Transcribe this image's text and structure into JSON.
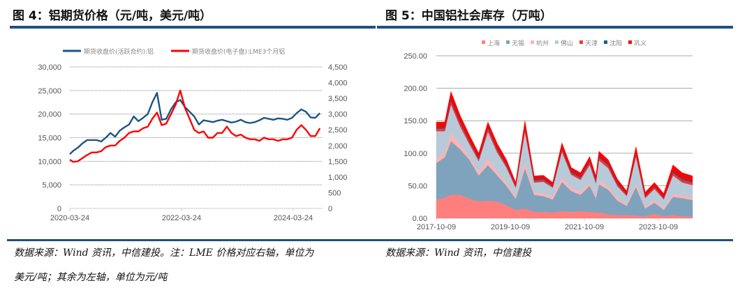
{
  "figures": [
    {
      "title": "图 4：铝期货价格（元/吨，美元/吨）",
      "note_lines": [
        "数据来源：Wind 资讯，中信建投。注：LME 价格对应右轴，单位为",
        "美元/吨；其余为左轴，单位为元/吨"
      ]
    },
    {
      "title": "图 5：中国铝社会库存（万吨）",
      "note_lines": [
        "数据来源：Wind 资讯，中信建投"
      ]
    }
  ],
  "chart_data": [
    {
      "type": "line",
      "title": "",
      "x_tick_labels": [
        "2020-03-24",
        "2022-03-24",
        "2024-03-24"
      ],
      "y_left_ticks": [
        "0",
        "5,000",
        "10,000",
        "15,000",
        "20,000",
        "25,000",
        "30,000"
      ],
      "y_right_ticks": [
        "0",
        "500",
        "1,000",
        "1,500",
        "2,000",
        "2,500",
        "3,000",
        "3,500",
        "4,000",
        "4,500"
      ],
      "ylim_left": [
        0,
        30000
      ],
      "ylim_right": [
        0,
        4500
      ],
      "grid": true,
      "legend_placement": "top",
      "x": [
        "2020-03",
        "2020-04",
        "2020-05",
        "2020-06",
        "2020-07",
        "2020-08",
        "2020-09",
        "2020-10",
        "2020-11",
        "2020-12",
        "2021-01",
        "2021-02",
        "2021-03",
        "2021-04",
        "2021-05",
        "2021-06",
        "2021-07",
        "2021-08",
        "2021-09",
        "2021-10",
        "2021-11",
        "2021-12",
        "2022-01",
        "2022-02",
        "2022-03",
        "2022-04",
        "2022-05",
        "2022-06",
        "2022-07",
        "2022-08",
        "2022-09",
        "2022-10",
        "2022-11",
        "2022-12",
        "2023-01",
        "2023-02",
        "2023-03",
        "2023-04",
        "2023-05",
        "2023-06",
        "2023-07",
        "2023-08",
        "2023-09",
        "2023-10",
        "2023-11",
        "2023-12",
        "2024-01",
        "2024-02",
        "2024-03",
        "2024-04",
        "2024-05",
        "2024-06",
        "2024-07",
        "2024-08",
        "2024-09"
      ],
      "series": [
        {
          "name": "期货收盘价(活跃合约):铝",
          "axis": "left",
          "color": "#1b5583",
          "values": [
            11500,
            12200,
            12900,
            13800,
            14500,
            14500,
            14500,
            14200,
            15000,
            16000,
            15200,
            16500,
            17200,
            17800,
            19500,
            18500,
            19200,
            20000,
            22500,
            24500,
            18800,
            19000,
            21000,
            22500,
            23000,
            21500,
            20500,
            19500,
            17800,
            18700,
            18500,
            18300,
            18600,
            18800,
            18500,
            18200,
            18400,
            18800,
            18300,
            18100,
            18300,
            18700,
            19200,
            19000,
            18800,
            19100,
            19000,
            18800,
            19200,
            20200,
            21000,
            20500,
            19300,
            19200,
            20200
          ]
        },
        {
          "name": "期货收盘价(电子盘):LME3个月铝",
          "axis": "right",
          "color": "#ff0000",
          "values": [
            1550,
            1480,
            1500,
            1600,
            1700,
            1780,
            1780,
            1820,
            1950,
            2000,
            2000,
            2150,
            2250,
            2400,
            2450,
            2450,
            2550,
            2600,
            2850,
            3050,
            2650,
            2700,
            3000,
            3300,
            3750,
            3200,
            2850,
            2500,
            2400,
            2450,
            2250,
            2250,
            2400,
            2400,
            2600,
            2400,
            2300,
            2350,
            2250,
            2200,
            2200,
            2150,
            2250,
            2200,
            2200,
            2150,
            2200,
            2200,
            2250,
            2500,
            2650,
            2500,
            2300,
            2300,
            2550
          ]
        }
      ]
    },
    {
      "type": "area",
      "stacked": true,
      "title": "",
      "x_tick_labels": [
        "2017-10-09",
        "2019-10-09",
        "2021-10-09",
        "2023-10-09"
      ],
      "y_ticks": [
        "0.00",
        "50.00",
        "100.00",
        "150.00",
        "200.00",
        "250.00"
      ],
      "ylim": [
        0,
        250
      ],
      "grid": true,
      "legend_placement": "top",
      "x": [
        "2017-10",
        "2018-01",
        "2018-03",
        "2018-06",
        "2018-09",
        "2018-12",
        "2019-03",
        "2019-06",
        "2019-09",
        "2019-12",
        "2020-03",
        "2020-06",
        "2020-09",
        "2020-12",
        "2021-03",
        "2021-06",
        "2021-09",
        "2021-12",
        "2022-02",
        "2022-03",
        "2022-06",
        "2022-09",
        "2022-12",
        "2023-03",
        "2023-06",
        "2023-09",
        "2023-12",
        "2024-03",
        "2024-06",
        "2024-09"
      ],
      "series": [
        {
          "name": "上海",
          "color": "#ff7f7f",
          "values": [
            28,
            32,
            36,
            36,
            30,
            26,
            27,
            26,
            20,
            13,
            15,
            10,
            10,
            9,
            11,
            10,
            11,
            10,
            9,
            9,
            6,
            5,
            5,
            4,
            3,
            7,
            3,
            5,
            3,
            3
          ]
        },
        {
          "name": "无锡",
          "color": "#7fa3bd",
          "values": [
            57,
            62,
            83,
            70,
            60,
            40,
            55,
            40,
            30,
            17,
            62,
            26,
            24,
            20,
            45,
            32,
            25,
            40,
            22,
            43,
            38,
            22,
            14,
            44,
            12,
            17,
            10,
            28,
            28,
            25
          ]
        },
        {
          "name": "杭州",
          "color": "#ffb3b3",
          "values": [
            7,
            7,
            12,
            8,
            6,
            5,
            10,
            6,
            5,
            4,
            9,
            4,
            4,
            4,
            7,
            5,
            5,
            5,
            4,
            6,
            5,
            4,
            3,
            5,
            3,
            4,
            3,
            4,
            4,
            4
          ]
        },
        {
          "name": "佛山",
          "color": "#b7cad9",
          "values": [
            42,
            33,
            44,
            27,
            18,
            17,
            41,
            29,
            23,
            13,
            47,
            15,
            18,
            14,
            39,
            20,
            18,
            27,
            19,
            31,
            28,
            18,
            12,
            42,
            13,
            17,
            13,
            29,
            20,
            19
          ]
        },
        {
          "name": "天津",
          "color": "#ff3333",
          "values": [
            4,
            4,
            5,
            5,
            4,
            3,
            5,
            4,
            3,
            2,
            5,
            3,
            3,
            2,
            4,
            3,
            3,
            4,
            3,
            4,
            4,
            3,
            2,
            4,
            2,
            3,
            2,
            4,
            4,
            4
          ]
        },
        {
          "name": "沈阳",
          "color": "#1f5f8b",
          "values": [
            2,
            2,
            3,
            2,
            2,
            2,
            2,
            2,
            2,
            1,
            2,
            2,
            2,
            1,
            2,
            2,
            2,
            2,
            2,
            2,
            2,
            2,
            1,
            2,
            1,
            1,
            1,
            2,
            2,
            2
          ]
        },
        {
          "name": "巩义",
          "color": "#ff0000",
          "values": [
            8,
            8,
            12,
            10,
            8,
            7,
            8,
            8,
            7,
            5,
            10,
            5,
            5,
            5,
            8,
            6,
            6,
            7,
            6,
            8,
            7,
            6,
            5,
            9,
            6,
            6,
            6,
            10,
            9,
            8
          ]
        }
      ]
    }
  ]
}
